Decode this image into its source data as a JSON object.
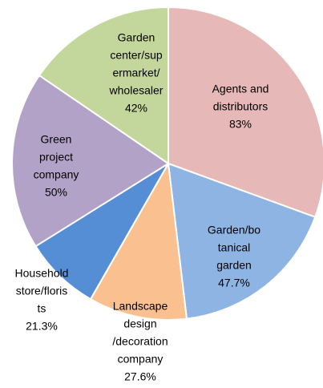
{
  "chart_data": {
    "type": "pie",
    "categories": [
      [
        "Agents and",
        "distributors"
      ],
      [
        "Garden/bo",
        "tanical",
        "garden"
      ],
      [
        "Landscape",
        "design",
        "/decoration",
        "company"
      ],
      [
        "Household",
        "store/floris",
        "ts"
      ],
      [
        "Green",
        "project",
        "company"
      ],
      [
        "Garden",
        "center/sup",
        "ermarket/",
        "wholesaler"
      ]
    ],
    "values": [
      83,
      47.7,
      27.6,
      21.3,
      50,
      42
    ],
    "value_labels": [
      "83%",
      "47.7%",
      "27.6%",
      "21.3%",
      "50%",
      "42%"
    ],
    "colors": [
      "#e6b9b8",
      "#8eb4e3",
      "#fac090",
      "#558ed5",
      "#b3a2c7",
      "#c3d69b"
    ]
  }
}
